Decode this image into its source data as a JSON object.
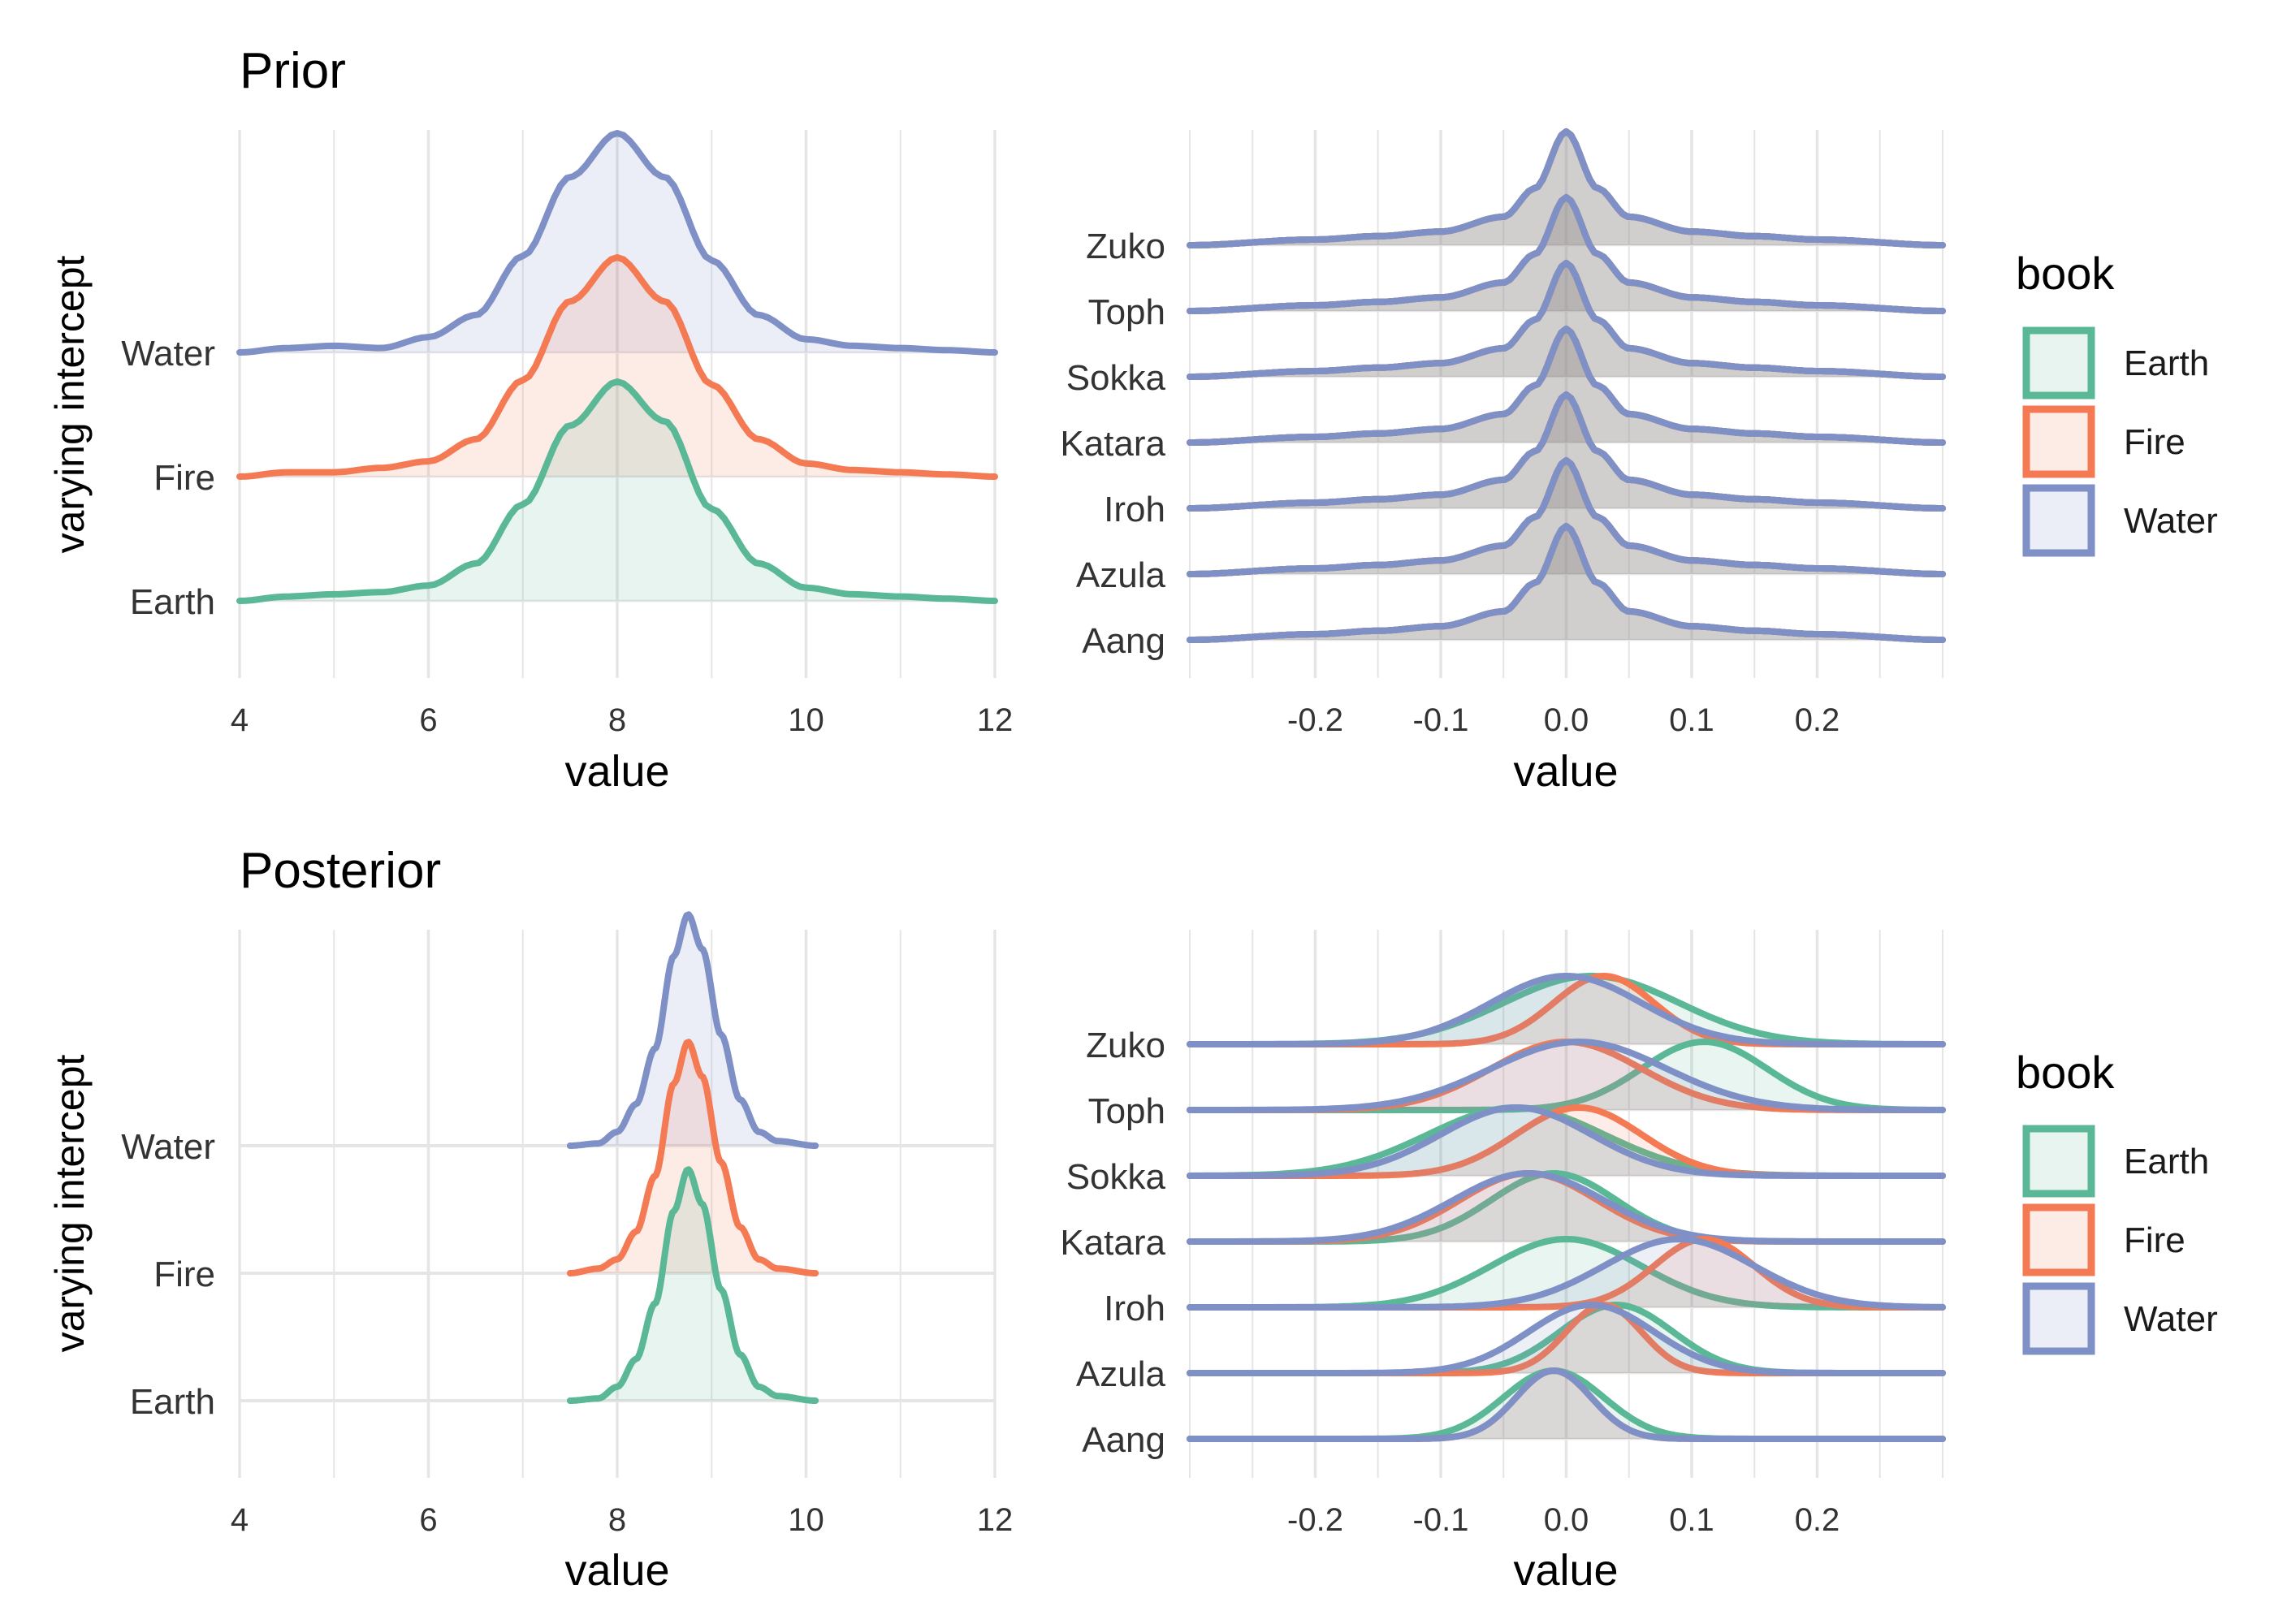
{
  "colors": {
    "Earth": "#5BB896",
    "Fire": "#F47A54",
    "Water": "#7F90C6",
    "grid": "#E5E5E5",
    "text": "#333333",
    "title": "#000000"
  },
  "legend": {
    "title": "book",
    "items": [
      "Earth",
      "Fire",
      "Water"
    ]
  },
  "shared": {
    "ylabel": "varying intercept",
    "xlabel": "value"
  },
  "chart_data": [
    {
      "id": "prior-books",
      "type": "ridgeline-density",
      "title": "Prior",
      "xlabel": "value",
      "ylabel": "varying intercept",
      "xlim": [
        4,
        12
      ],
      "xticks": [
        "4",
        "6",
        "8",
        "10",
        "12"
      ],
      "categories": [
        "Earth",
        "Fire",
        "Water"
      ],
      "series": [
        {
          "name": "Earth",
          "x": [
            4.0,
            4.5,
            5.0,
            5.5,
            6.0,
            6.5,
            7.0,
            7.5,
            8.0,
            8.5,
            9.0,
            9.5,
            10.0,
            10.5,
            11.0,
            11.5,
            12.0
          ],
          "density": [
            0.0,
            0.02,
            0.03,
            0.04,
            0.07,
            0.17,
            0.44,
            0.8,
            1.0,
            0.82,
            0.42,
            0.17,
            0.06,
            0.03,
            0.02,
            0.01,
            0.0
          ]
        },
        {
          "name": "Fire",
          "x": [
            4.0,
            4.5,
            5.0,
            5.5,
            6.0,
            6.5,
            7.0,
            7.5,
            8.0,
            8.5,
            9.0,
            9.5,
            10.0,
            10.5,
            11.0,
            11.5,
            12.0
          ],
          "density": [
            0.0,
            0.02,
            0.02,
            0.04,
            0.07,
            0.17,
            0.44,
            0.8,
            1.0,
            0.8,
            0.42,
            0.17,
            0.06,
            0.03,
            0.02,
            0.01,
            0.0
          ]
        },
        {
          "name": "Water",
          "x": [
            4.0,
            4.5,
            5.0,
            5.5,
            6.0,
            6.5,
            7.0,
            7.5,
            8.0,
            8.5,
            9.0,
            9.5,
            10.0,
            10.5,
            11.0,
            11.5,
            12.0
          ],
          "density": [
            0.0,
            0.02,
            0.03,
            0.02,
            0.07,
            0.17,
            0.44,
            0.8,
            1.0,
            0.8,
            0.42,
            0.17,
            0.06,
            0.03,
            0.02,
            0.01,
            0.0
          ]
        }
      ]
    },
    {
      "id": "prior-characters",
      "type": "ridgeline-density",
      "title": "",
      "xlabel": "value",
      "xlim": [
        -0.3,
        0.3
      ],
      "xticks": [
        "-0.2",
        "-0.1",
        "0.0",
        "0.1",
        "0.2"
      ],
      "categories": [
        "Aang",
        "Azula",
        "Iroh",
        "Katara",
        "Sokka",
        "Toph",
        "Zuko"
      ],
      "profile": {
        "x": [
          -0.3,
          -0.2,
          -0.15,
          -0.1,
          -0.05,
          -0.025,
          0.0,
          0.025,
          0.05,
          0.1,
          0.15,
          0.2,
          0.3
        ],
        "density": [
          0.0,
          0.05,
          0.08,
          0.12,
          0.25,
          0.5,
          1.0,
          0.5,
          0.25,
          0.12,
          0.08,
          0.05,
          0.0
        ]
      },
      "series_names": [
        "Earth",
        "Fire",
        "Water"
      ]
    },
    {
      "id": "posterior-books",
      "type": "ridgeline-density",
      "title": "Posterior",
      "xlabel": "value",
      "ylabel": "varying intercept",
      "xlim": [
        4,
        12
      ],
      "xticks": [
        "4",
        "6",
        "8",
        "10",
        "12"
      ],
      "categories": [
        "Earth",
        "Fire",
        "Water"
      ],
      "series": [
        {
          "name": "Earth",
          "x": [
            7.5,
            7.8,
            8.0,
            8.2,
            8.4,
            8.6,
            8.75,
            8.9,
            9.1,
            9.3,
            9.5,
            9.7,
            10.1
          ],
          "density": [
            0.0,
            0.01,
            0.06,
            0.18,
            0.42,
            0.82,
            1.0,
            0.85,
            0.48,
            0.2,
            0.06,
            0.02,
            0.0
          ]
        },
        {
          "name": "Fire",
          "x": [
            7.5,
            7.8,
            8.0,
            8.2,
            8.4,
            8.6,
            8.75,
            8.9,
            9.1,
            9.3,
            9.5,
            9.7,
            10.1
          ],
          "density": [
            0.0,
            0.02,
            0.06,
            0.18,
            0.42,
            0.82,
            1.0,
            0.85,
            0.48,
            0.2,
            0.06,
            0.02,
            0.0
          ]
        },
        {
          "name": "Water",
          "x": [
            7.5,
            7.8,
            8.0,
            8.2,
            8.4,
            8.6,
            8.75,
            8.9,
            9.1,
            9.3,
            9.5,
            9.7,
            10.1
          ],
          "density": [
            0.0,
            0.01,
            0.06,
            0.18,
            0.42,
            0.82,
            1.0,
            0.85,
            0.48,
            0.2,
            0.06,
            0.02,
            0.0
          ]
        }
      ]
    },
    {
      "id": "posterior-characters",
      "type": "ridgeline-density",
      "title": "",
      "xlabel": "value",
      "xlim": [
        -0.3,
        0.3
      ],
      "xticks": [
        "-0.2",
        "-0.1",
        "0.0",
        "0.1",
        "0.2"
      ],
      "categories": [
        "Aang",
        "Azula",
        "Iroh",
        "Katara",
        "Sokka",
        "Toph",
        "Zuko"
      ],
      "rows": [
        {
          "name": "Aang",
          "peaks": {
            "Earth": [
              -0.01,
              0.04
            ],
            "Fire": [
              -0.01,
              0.03
            ],
            "Water": [
              -0.01,
              0.03
            ]
          }
        },
        {
          "name": "Azula",
          "peaks": {
            "Earth": [
              0.04,
              0.045
            ],
            "Fire": [
              0.03,
              0.03
            ],
            "Water": [
              0.02,
              0.05
            ]
          }
        },
        {
          "name": "Iroh",
          "peaks": {
            "Earth": [
              0.0,
              0.06
            ],
            "Fire": [
              0.11,
              0.04
            ],
            "Water": [
              0.09,
              0.06
            ]
          }
        },
        {
          "name": "Katara",
          "peaks": {
            "Earth": [
              -0.01,
              0.05
            ],
            "Fire": [
              -0.03,
              0.055
            ],
            "Water": [
              -0.03,
              0.06
            ]
          }
        },
        {
          "name": "Sokka",
          "peaks": {
            "Earth": [
              -0.04,
              0.07
            ],
            "Fire": [
              0.01,
              0.05
            ],
            "Water": [
              -0.04,
              0.06
            ]
          }
        },
        {
          "name": "Toph",
          "peaks": {
            "Earth": [
              0.11,
              0.05
            ],
            "Fire": [
              0.0,
              0.06
            ],
            "Water": [
              0.01,
              0.07
            ]
          }
        },
        {
          "name": "Zuko",
          "peaks": {
            "Earth": [
              0.02,
              0.07
            ],
            "Fire": [
              0.03,
              0.04
            ],
            "Water": [
              0.0,
              0.06
            ]
          }
        }
      ]
    }
  ]
}
